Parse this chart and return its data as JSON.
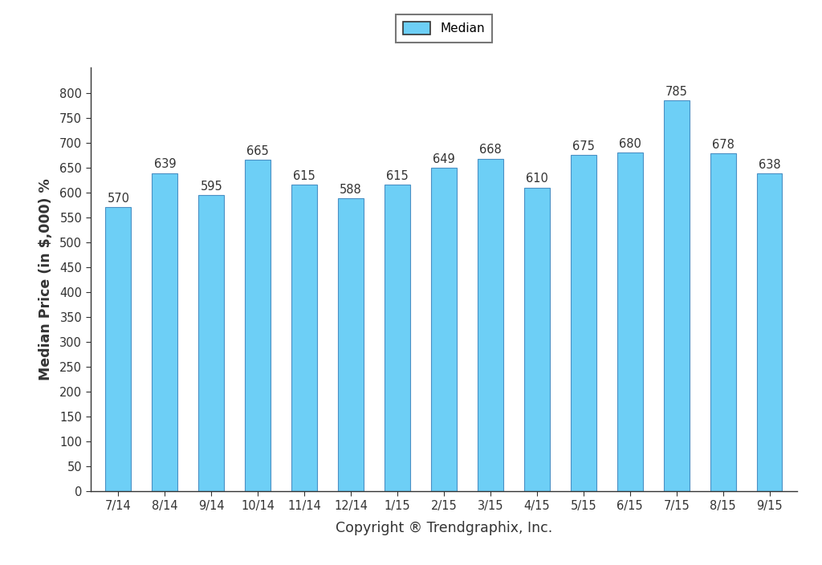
{
  "categories": [
    "7/14",
    "8/14",
    "9/14",
    "10/14",
    "11/14",
    "12/14",
    "1/15",
    "2/15",
    "3/15",
    "4/15",
    "5/15",
    "6/15",
    "7/15",
    "8/15",
    "9/15"
  ],
  "values": [
    570,
    639,
    595,
    665,
    615,
    588,
    615,
    649,
    668,
    610,
    675,
    680,
    785,
    678,
    638
  ],
  "bar_color": "#6DCFF6",
  "bar_edge_color": "#4a90c4",
  "ylabel": "Median Price (in $,000) %",
  "xlabel": "Copyright ® Trendgraphix, Inc.",
  "legend_label": "Median",
  "ylim": [
    0,
    850
  ],
  "yticks": [
    0,
    50,
    100,
    150,
    200,
    250,
    300,
    350,
    400,
    450,
    500,
    550,
    600,
    650,
    700,
    750,
    800
  ],
  "background_color": "#ffffff",
  "bar_width": 0.55,
  "annotation_fontsize": 10.5,
  "axis_label_fontsize": 12.5,
  "tick_fontsize": 10.5,
  "legend_fontsize": 11,
  "spine_color": "#333333",
  "text_color": "#333333"
}
